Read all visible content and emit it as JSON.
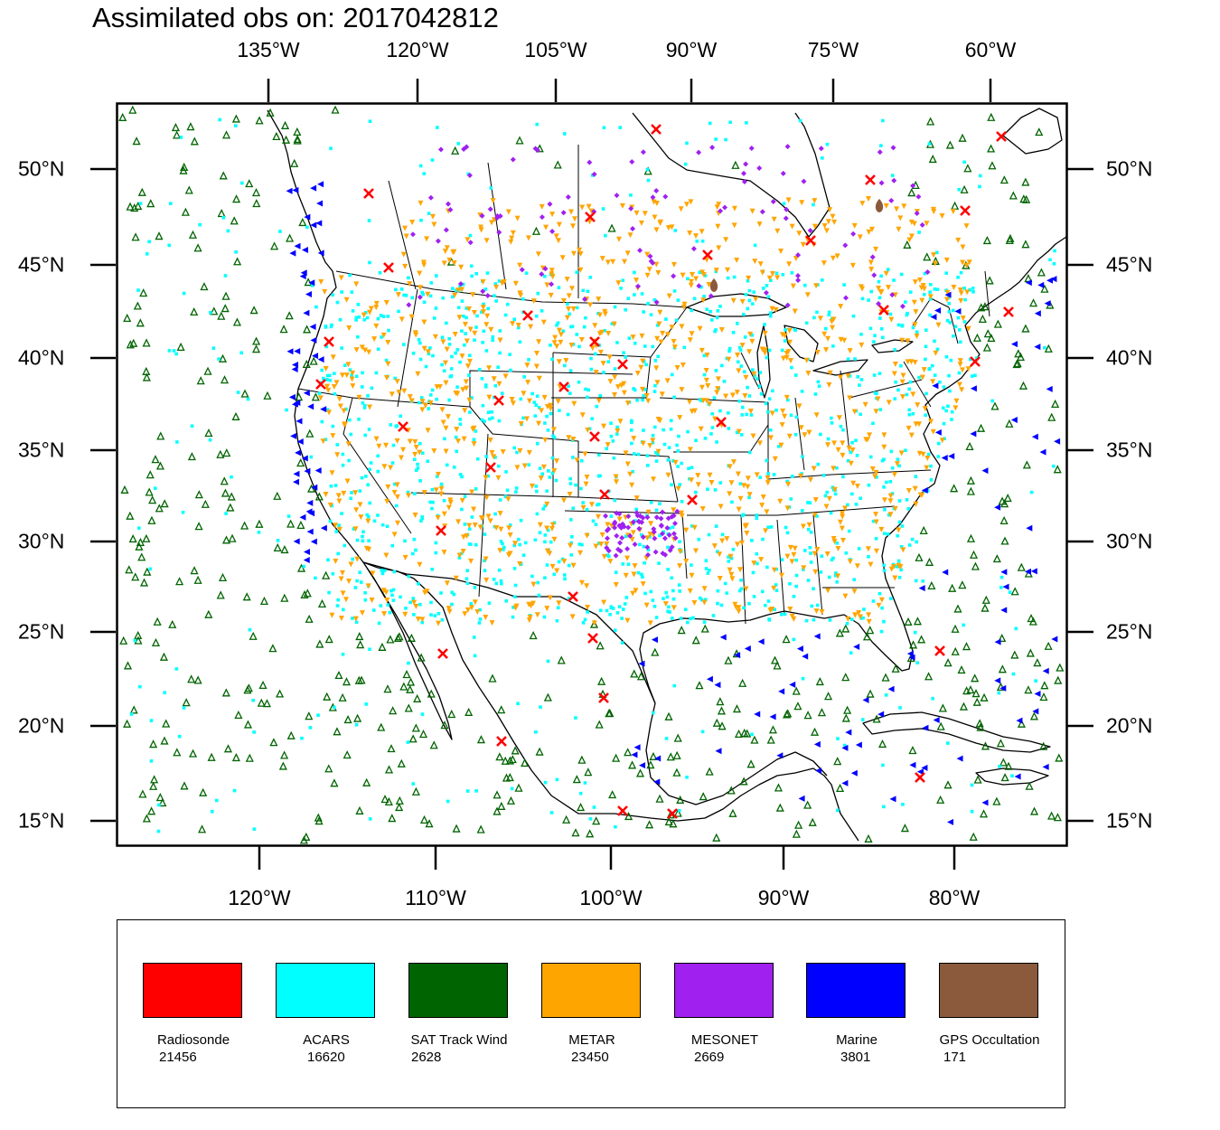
{
  "title": "Assimilated obs on: 2017042812",
  "top_lon_labels": [
    "135°W",
    "120°W",
    "105°W",
    "90°W",
    "75°W",
    "60°W"
  ],
  "bottom_lon_labels": [
    "120°W",
    "110°W",
    "100°W",
    "90°W",
    "80°W"
  ],
  "lat_labels": [
    "50°N",
    "45°N",
    "40°N",
    "35°N",
    "30°N",
    "25°N",
    "20°N",
    "15°N"
  ],
  "map": {
    "projection": "lambert-conformal",
    "lon_range": [
      -128,
      -73
    ],
    "lat_range": [
      13.5,
      53
    ],
    "symbols": {
      "Radiosonde": "x-cross",
      "ACARS": "square-dot",
      "SAT Track Wind": "triangle-up-outline",
      "METAR": "triangle-down",
      "MESONET": "diamond",
      "Marine": "triangle-left",
      "GPS Occultation": "teardrop"
    }
  },
  "legend": [
    {
      "name": "Radiosonde",
      "count": "21456",
      "color": "#ff0000"
    },
    {
      "name": "ACARS",
      "count": "16620",
      "color": "#00ffff"
    },
    {
      "name": "SAT Track Wind",
      "count": "2628",
      "color": "#006400"
    },
    {
      "name": "METAR",
      "count": "23450",
      "color": "#ffa500"
    },
    {
      "name": "MESONET",
      "count": "2669",
      "color": "#a020f0"
    },
    {
      "name": "Marine",
      "count": "3801",
      "color": "#0000ff"
    },
    {
      "name": "GPS Occultation",
      "count": "171",
      "color": "#8b5a3c"
    }
  ]
}
